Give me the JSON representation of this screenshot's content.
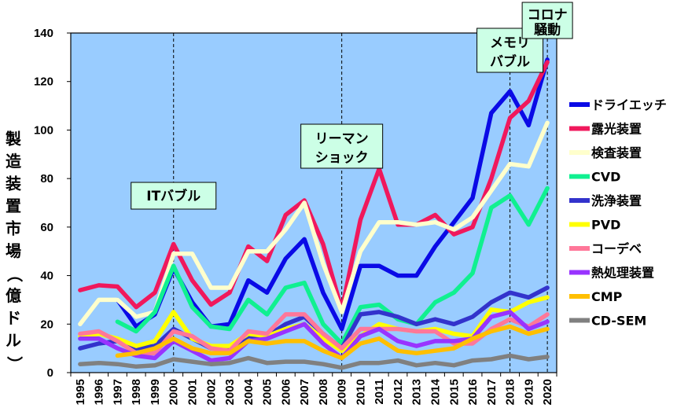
{
  "chart_data": {
    "type": "line",
    "xlabel": "",
    "ylabel": "製造装置市場（億ドル）",
    "ylim": [
      0,
      140
    ],
    "yticks": [
      0,
      20,
      40,
      60,
      80,
      100,
      120,
      140
    ],
    "x": [
      "1995",
      "1996",
      "1997",
      "1998",
      "1999",
      "2000",
      "2001",
      "2002",
      "2003",
      "2004",
      "2005",
      "2006",
      "2007",
      "2008",
      "2009",
      "2010",
      "2011",
      "2012",
      "2013",
      "2014",
      "2015",
      "2016",
      "2017",
      "2018",
      "2019",
      "2020"
    ],
    "grid": false,
    "legend_position": "right",
    "plot_background": "#99ccff",
    "annotations": [
      {
        "lines": [
          "ITバブル"
        ],
        "x": "2000"
      },
      {
        "lines": [
          "リーマン",
          "ショック"
        ],
        "x": "2009"
      },
      {
        "lines": [
          "メモリ",
          "バブル"
        ],
        "x": "2018"
      },
      {
        "lines": [
          "コロナ",
          "騒動"
        ],
        "x": "2020"
      }
    ],
    "series": [
      {
        "name": "ドライエッチ",
        "color": "#0a0ae6",
        "values": [
          null,
          null,
          30,
          19,
          24,
          43,
          29,
          19,
          20,
          38,
          33,
          47,
          55,
          33,
          18,
          44,
          44,
          40,
          40,
          52,
          62,
          72,
          107,
          116,
          102,
          129
        ]
      },
      {
        "name": "露光装置",
        "color": "#f0185c",
        "values": [
          34,
          36,
          35.5,
          27,
          33,
          53,
          38,
          28,
          33,
          52,
          46,
          65,
          71,
          53,
          26,
          63,
          84,
          61,
          61,
          65,
          57,
          60,
          80,
          105,
          112,
          128
        ]
      },
      {
        "name": "検査装置",
        "color": "#ffffcc",
        "values": [
          20,
          30,
          30,
          23,
          25,
          49,
          49,
          35,
          35,
          50,
          50,
          59,
          70,
          45,
          25,
          50,
          62,
          62,
          61,
          62,
          59,
          64,
          75,
          86,
          85,
          103
        ]
      },
      {
        "name": "CVD",
        "color": "#10f090",
        "values": [
          null,
          null,
          21,
          17,
          25,
          44,
          27,
          19,
          18,
          30,
          24,
          35,
          37,
          20,
          12,
          27,
          28,
          22,
          20,
          29,
          33,
          41,
          68,
          73,
          61,
          76
        ]
      },
      {
        "name": "洗浄装置",
        "color": "#3333cc",
        "values": [
          10,
          12,
          13,
          10,
          11,
          18,
          14,
          10,
          10,
          15,
          15,
          20,
          23,
          16,
          10,
          24,
          25,
          23,
          20,
          22,
          20,
          23,
          29,
          33,
          31,
          35
        ]
      },
      {
        "name": "PVD",
        "color": "#ffff00",
        "values": [
          15,
          16,
          14,
          11,
          13,
          25,
          14,
          11,
          11,
          16,
          15,
          18,
          20,
          14,
          9,
          15,
          20,
          18,
          17,
          18,
          16,
          15,
          26,
          25,
          29,
          31
        ]
      },
      {
        "name": "コーデベ",
        "color": "#ff7799",
        "values": [
          16,
          17,
          13,
          8,
          8,
          17,
          15,
          10,
          9,
          17,
          16,
          24,
          24,
          16,
          10,
          18,
          18,
          18,
          17,
          17,
          12,
          12,
          18,
          22,
          19,
          24
        ]
      },
      {
        "name": "熱処理装置",
        "color": "#9933ff",
        "values": [
          14,
          14,
          10,
          7,
          6,
          13,
          9,
          5,
          6,
          13,
          14,
          17,
          20,
          12,
          6,
          15,
          18,
          13,
          11,
          13,
          13,
          14,
          23,
          25,
          18,
          21
        ]
      },
      {
        "name": "CMP",
        "color": "#ffbf00",
        "values": [
          null,
          null,
          7,
          8,
          10,
          14,
          10,
          8,
          8,
          13,
          12,
          13,
          13,
          9,
          6,
          12,
          14,
          9,
          8,
          9,
          10,
          14,
          17,
          19,
          16,
          18
        ]
      },
      {
        "name": "CD-SEM",
        "color": "#808080",
        "values": [
          3.5,
          4,
          3.5,
          2.5,
          3,
          5.5,
          4.5,
          3.5,
          4,
          6,
          4,
          4.5,
          4.5,
          3.5,
          2,
          4,
          4,
          5,
          3,
          4,
          3,
          5,
          5.5,
          7,
          5.5,
          6.5
        ]
      }
    ]
  }
}
